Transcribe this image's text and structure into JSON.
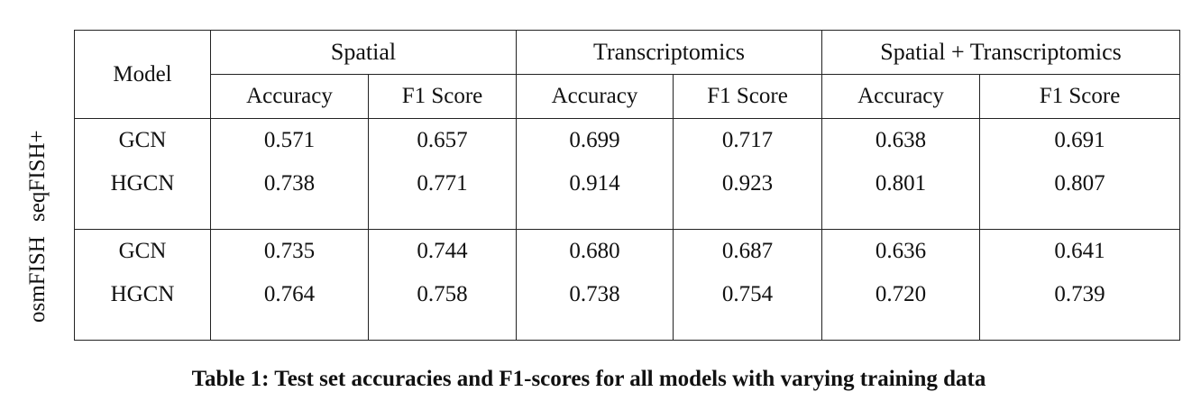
{
  "side_labels": {
    "first": "osmFISH",
    "second": "seqFISH+"
  },
  "table": {
    "model_header": "Model",
    "groups": [
      "Spatial",
      "Transcriptomics",
      "Spatial + Transcriptomics"
    ],
    "metrics": [
      "Accuracy",
      "F1 Score",
      "Accuracy",
      "F1 Score",
      "Accuracy",
      "F1 Score"
    ],
    "blocks": [
      {
        "rows": [
          {
            "model": "GCN",
            "values": [
              "0.571",
              "0.657",
              "0.699",
              "0.717",
              "0.638",
              "0.691"
            ]
          },
          {
            "model": "HGCN",
            "values": [
              "0.738",
              "0.771",
              "0.914",
              "0.923",
              "0.801",
              "0.807"
            ]
          }
        ]
      },
      {
        "rows": [
          {
            "model": "GCN",
            "values": [
              "0.735",
              "0.744",
              "0.680",
              "0.687",
              "0.636",
              "0.641"
            ]
          },
          {
            "model": "HGCN",
            "values": [
              "0.764",
              "0.758",
              "0.738",
              "0.754",
              "0.720",
              "0.739"
            ]
          }
        ]
      }
    ]
  },
  "caption": "Table 1: Test set accuracies and F1-scores for all models with varying training data"
}
